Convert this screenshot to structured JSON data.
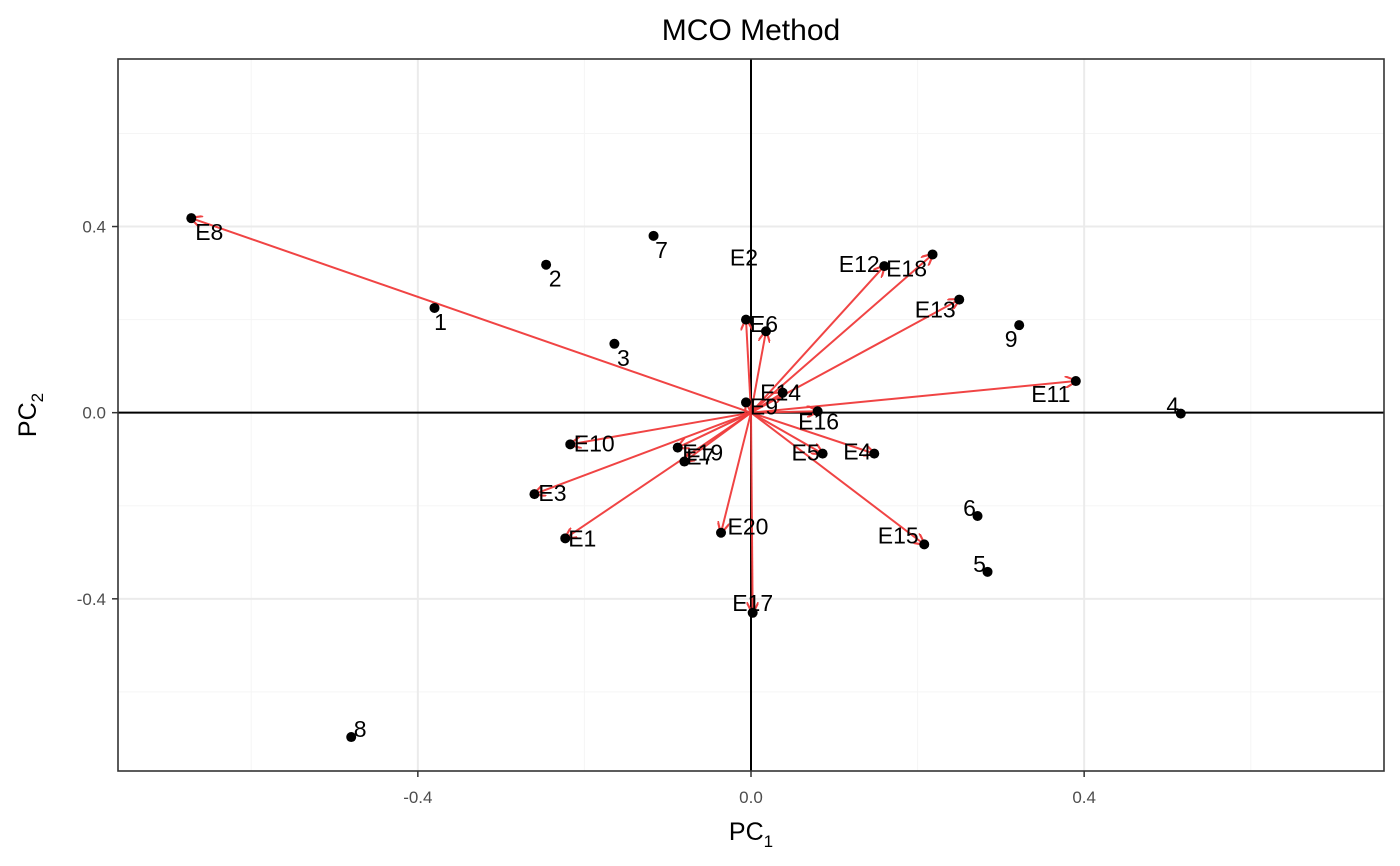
{
  "chart_data": {
    "type": "scatter",
    "title": "MCO Method",
    "xlabel": {
      "base": "PC",
      "sub": "1"
    },
    "ylabel": {
      "base": "PC",
      "sub": "2"
    },
    "xlim": [
      -0.76,
      0.76
    ],
    "ylim": [
      -0.77,
      0.76
    ],
    "xticks": [
      -0.4,
      0.0,
      0.4
    ],
    "xtick_labels": [
      "-0.4",
      "0.0",
      "0.4"
    ],
    "yticks": [
      -0.4,
      0.0,
      0.4
    ],
    "ytick_labels": [
      "-0.4",
      "0.0",
      "0.4"
    ],
    "grid": true,
    "reference_lines": {
      "x": 0,
      "y": 0
    },
    "colors": {
      "points": "#000000",
      "arrows": "#f03b3b",
      "grid_major": "#ebebeb",
      "grid_minor": "#f5f5f5",
      "panel_border": "#333333"
    },
    "observations": [
      {
        "label": "1",
        "x": -0.38,
        "y": 0.225
      },
      {
        "label": "2",
        "x": -0.246,
        "y": 0.318
      },
      {
        "label": "3",
        "x": -0.164,
        "y": 0.148
      },
      {
        "label": "4",
        "x": 0.516,
        "y": -0.002
      },
      {
        "label": "5",
        "x": 0.284,
        "y": -0.342
      },
      {
        "label": "6",
        "x": 0.272,
        "y": -0.222
      },
      {
        "label": "7",
        "x": -0.117,
        "y": 0.38
      },
      {
        "label": "8",
        "x": -0.48,
        "y": -0.697
      },
      {
        "label": "9",
        "x": 0.322,
        "y": 0.188
      }
    ],
    "variables": [
      {
        "label": "E1",
        "x": -0.223,
        "y": -0.27
      },
      {
        "label": "E2",
        "x": -0.006,
        "y": 0.2
      },
      {
        "label": "E3",
        "x": -0.26,
        "y": -0.175
      },
      {
        "label": "E4",
        "x": 0.148,
        "y": -0.088
      },
      {
        "label": "E5",
        "x": 0.086,
        "y": -0.088
      },
      {
        "label": "E6",
        "x": 0.018,
        "y": 0.175
      },
      {
        "label": "E7",
        "x": -0.08,
        "y": -0.105
      },
      {
        "label": "E8",
        "x": -0.672,
        "y": 0.418
      },
      {
        "label": "E9",
        "x": -0.006,
        "y": 0.022
      },
      {
        "label": "E10",
        "x": -0.217,
        "y": -0.068
      },
      {
        "label": "E11",
        "x": 0.39,
        "y": 0.068
      },
      {
        "label": "E12",
        "x": 0.16,
        "y": 0.315
      },
      {
        "label": "E13",
        "x": 0.25,
        "y": 0.243
      },
      {
        "label": "E14",
        "x": 0.038,
        "y": 0.043
      },
      {
        "label": "E15",
        "x": 0.208,
        "y": -0.283
      },
      {
        "label": "E16",
        "x": 0.08,
        "y": 0.003
      },
      {
        "label": "E17",
        "x": 0.002,
        "y": -0.43
      },
      {
        "label": "E18",
        "x": 0.218,
        "y": 0.34
      },
      {
        "label": "E19",
        "x": -0.088,
        "y": -0.075
      },
      {
        "label": "E20",
        "x": -0.036,
        "y": -0.258
      }
    ]
  }
}
